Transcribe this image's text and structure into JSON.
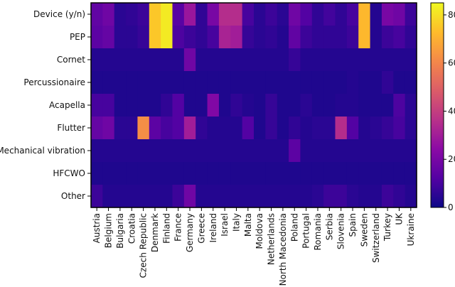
{
  "chart_data": {
    "type": "heatmap",
    "title": "",
    "xlabel": "",
    "ylabel": "",
    "x_categories": [
      "Austria",
      "Belgium",
      "Bulgaria",
      "Croatia",
      "Czech Republic",
      "Denmark",
      "Finland",
      "France",
      "Germany",
      "Greece",
      "Ireland",
      "Israel",
      "Italy",
      "Malta",
      "Moldova",
      "Netherlands",
      "North Macedonia",
      "Poland",
      "Portugal",
      "Romania",
      "Serbia",
      "Slovenia",
      "Spain",
      "Sweden",
      "Switzerland",
      "Turkey",
      "UK",
      "Ukraine"
    ],
    "y_categories": [
      "Device (y/n)",
      "PEP",
      "Cornet",
      "Percussionaire",
      "Acapella",
      "Flutter",
      "Mechanical vibration",
      "HFCWO",
      "Other"
    ],
    "values": [
      [
        15,
        18,
        5,
        6,
        8,
        75,
        82,
        13,
        28,
        6,
        20,
        35,
        35,
        10,
        5,
        8,
        5,
        18,
        12,
        6,
        9,
        6,
        10,
        72,
        4,
        20,
        18,
        8
      ],
      [
        14,
        16,
        5,
        5,
        7,
        75,
        82,
        11,
        8,
        6,
        10,
        32,
        30,
        7,
        5,
        6,
        4,
        15,
        8,
        6,
        6,
        6,
        8,
        72,
        4,
        8,
        10,
        6
      ],
      [
        4,
        4,
        4,
        4,
        4,
        4,
        4,
        4,
        18,
        4,
        4,
        4,
        4,
        4,
        4,
        4,
        4,
        7,
        4,
        4,
        4,
        4,
        4,
        4,
        4,
        4,
        4,
        4
      ],
      [
        3,
        3,
        3,
        3,
        3,
        3,
        3,
        3,
        3,
        3,
        3,
        3,
        3,
        3,
        3,
        3,
        3,
        3,
        3,
        3,
        3,
        3,
        4,
        3,
        3,
        6,
        3,
        3
      ],
      [
        10,
        10,
        3,
        3,
        3,
        3,
        6,
        12,
        3,
        3,
        22,
        3,
        6,
        4,
        3,
        7,
        3,
        3,
        5,
        3,
        3,
        4,
        4,
        3,
        3,
        3,
        11,
        5
      ],
      [
        16,
        18,
        5,
        5,
        62,
        14,
        10,
        12,
        30,
        6,
        4,
        4,
        4,
        12,
        3,
        7,
        3,
        6,
        4,
        5,
        5,
        35,
        12,
        4,
        5,
        7,
        10,
        5
      ],
      [
        4,
        4,
        4,
        4,
        4,
        4,
        4,
        4,
        4,
        4,
        4,
        4,
        4,
        4,
        4,
        4,
        4,
        14,
        4,
        4,
        4,
        4,
        4,
        4,
        4,
        4,
        4,
        4
      ],
      [
        3,
        3,
        3,
        3,
        3,
        3,
        3,
        3,
        3,
        3,
        3,
        3,
        3,
        3,
        3,
        3,
        3,
        3,
        3,
        3,
        3,
        3,
        3,
        3,
        3,
        3,
        3,
        3
      ],
      [
        8,
        4,
        4,
        4,
        4,
        4,
        4,
        8,
        18,
        4,
        4,
        4,
        4,
        4,
        4,
        4,
        4,
        4,
        4,
        5,
        8,
        8,
        5,
        4,
        4,
        8,
        6,
        4
      ]
    ],
    "colorbar": {
      "min": 0,
      "max": 85,
      "ticks": [
        0,
        20,
        40,
        60,
        80
      ]
    },
    "colormap": "plasma",
    "grid": false,
    "legend": "colorbar-right"
  }
}
